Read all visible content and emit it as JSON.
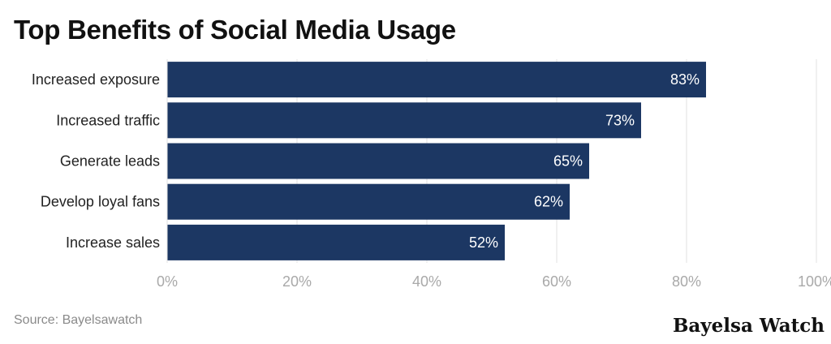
{
  "title": "Top Benefits of Social Media Usage",
  "source": "Source: Bayelsawatch",
  "brand": "Bayelsa Watch",
  "colors": {
    "bar": "#1c3763",
    "grid": "#e2e2e2",
    "tick": "#a9a9a9",
    "category": "#222222",
    "label": "#ffffff"
  },
  "chart_data": {
    "type": "bar",
    "orientation": "horizontal",
    "categories": [
      "Increased exposure",
      "Increased traffic",
      "Generate leads",
      "Develop loyal fans",
      "Increase sales"
    ],
    "values": [
      83,
      73,
      65,
      62,
      52
    ],
    "value_labels": [
      "83%",
      "73%",
      "65%",
      "62%",
      "52%"
    ],
    "xlim": [
      0,
      100
    ],
    "xticks": [
      0,
      20,
      40,
      60,
      80,
      100
    ],
    "xtick_labels": [
      "0%",
      "20%",
      "40%",
      "60%",
      "80%",
      "100%"
    ],
    "grid": true
  }
}
